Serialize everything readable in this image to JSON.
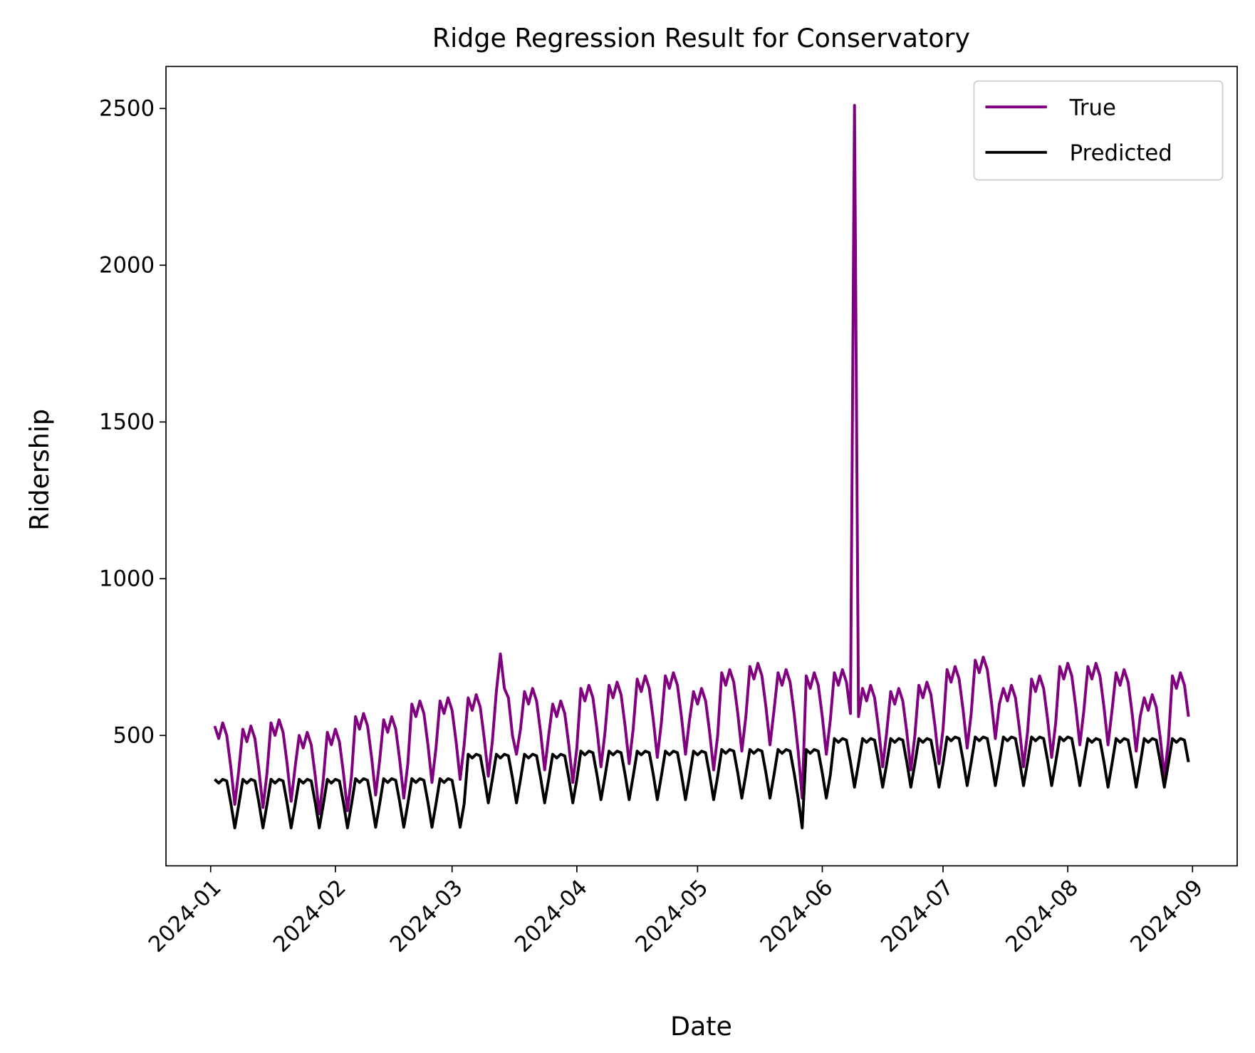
{
  "chart_data": {
    "type": "line",
    "title": "Ridge Regression Result for Conservatory",
    "xlabel": "Date",
    "ylabel": "Ridership",
    "x": [
      1,
      2,
      3,
      4,
      5,
      6,
      7,
      8,
      9,
      10,
      11,
      12,
      13,
      14,
      15,
      16,
      17,
      18,
      19,
      20,
      21,
      22,
      23,
      24,
      25,
      26,
      27,
      28,
      29,
      30,
      31,
      32,
      33,
      34,
      35,
      36,
      37,
      38,
      39,
      40,
      41,
      42,
      43,
      44,
      45,
      46,
      47,
      48,
      49,
      50,
      51,
      52,
      53,
      54,
      55,
      56,
      57,
      58,
      59,
      60,
      61,
      62,
      63,
      64,
      65,
      66,
      67,
      68,
      69,
      70,
      71,
      72,
      73,
      74,
      75,
      76,
      77,
      78,
      79,
      80,
      81,
      82,
      83,
      84,
      85,
      86,
      87,
      88,
      89,
      90,
      91,
      92,
      93,
      94,
      95,
      96,
      97,
      98,
      99,
      100,
      101,
      102,
      103,
      104,
      105,
      106,
      107,
      108,
      109,
      110,
      111,
      112,
      113,
      114,
      115,
      116,
      117,
      118,
      119,
      120,
      121,
      122,
      123,
      124,
      125,
      126,
      127,
      128,
      129,
      130,
      131,
      132,
      133,
      134,
      135,
      136,
      137,
      138,
      139,
      140,
      141,
      142,
      143,
      144,
      145,
      146,
      147,
      148,
      149,
      150,
      151,
      152,
      153,
      154,
      155,
      156,
      157,
      158,
      159,
      160,
      161,
      162,
      163,
      164,
      165,
      166,
      167,
      168,
      169,
      170,
      171,
      172,
      173,
      174,
      175,
      176,
      177,
      178,
      179,
      180,
      181,
      182,
      183,
      184,
      185,
      186,
      187,
      188,
      189,
      190,
      191,
      192,
      193,
      194,
      195,
      196,
      197,
      198,
      199,
      200,
      201,
      202,
      203,
      204,
      205,
      206,
      207,
      208,
      209,
      210,
      211,
      212,
      213,
      214,
      215,
      216,
      217,
      218,
      219,
      220,
      221,
      222,
      223,
      224,
      225,
      226,
      227,
      228,
      229,
      230,
      231,
      232,
      233,
      234,
      235,
      236,
      237,
      238,
      239,
      240,
      241,
      242,
      243
    ],
    "series": [
      {
        "name": "True",
        "color": "#800080",
        "values": [
          530,
          490,
          540,
          500,
          400,
          280,
          390,
          520,
          480,
          530,
          490,
          390,
          270,
          380,
          540,
          500,
          550,
          510,
          410,
          290,
          400,
          500,
          460,
          510,
          470,
          370,
          250,
          360,
          510,
          470,
          520,
          480,
          380,
          260,
          370,
          560,
          520,
          570,
          530,
          430,
          310,
          420,
          550,
          510,
          560,
          520,
          420,
          300,
          410,
          600,
          560,
          610,
          570,
          470,
          350,
          460,
          610,
          570,
          620,
          580,
          480,
          360,
          470,
          620,
          580,
          630,
          590,
          490,
          370,
          480,
          640,
          760,
          650,
          620,
          500,
          440,
          520,
          640,
          600,
          650,
          610,
          510,
          390,
          500,
          600,
          560,
          610,
          570,
          470,
          350,
          460,
          650,
          610,
          660,
          620,
          520,
          400,
          510,
          660,
          620,
          670,
          630,
          530,
          410,
          520,
          680,
          640,
          690,
          650,
          550,
          430,
          540,
          690,
          650,
          700,
          660,
          560,
          440,
          550,
          640,
          600,
          650,
          610,
          510,
          390,
          500,
          700,
          660,
          710,
          670,
          570,
          450,
          560,
          720,
          680,
          730,
          690,
          590,
          470,
          580,
          700,
          660,
          710,
          670,
          570,
          450,
          300,
          690,
          650,
          700,
          660,
          560,
          440,
          550,
          700,
          660,
          710,
          670,
          570,
          2510,
          560,
          650,
          610,
          660,
          620,
          520,
          400,
          510,
          640,
          600,
          650,
          610,
          510,
          390,
          500,
          660,
          620,
          670,
          630,
          530,
          410,
          520,
          710,
          670,
          720,
          680,
          580,
          460,
          570,
          740,
          700,
          750,
          710,
          610,
          490,
          600,
          650,
          610,
          660,
          620,
          520,
          400,
          510,
          680,
          640,
          690,
          650,
          550,
          430,
          540,
          720,
          680,
          730,
          690,
          590,
          470,
          580,
          720,
          680,
          730,
          690,
          590,
          470,
          580,
          700,
          660,
          710,
          670,
          570,
          450,
          560,
          620,
          580,
          630,
          590,
          490,
          370,
          480,
          690,
          650,
          700,
          660,
          560
        ]
      },
      {
        "name": "Predicted",
        "color": "#000000",
        "values": [
          360,
          348,
          360,
          355,
          285,
          205,
          280,
          360,
          348,
          360,
          355,
          285,
          205,
          280,
          360,
          348,
          360,
          355,
          285,
          205,
          280,
          360,
          348,
          360,
          355,
          285,
          205,
          280,
          360,
          348,
          360,
          355,
          285,
          205,
          280,
          362,
          350,
          362,
          357,
          287,
          207,
          282,
          362,
          350,
          362,
          357,
          287,
          207,
          282,
          362,
          350,
          362,
          357,
          287,
          207,
          282,
          362,
          350,
          362,
          357,
          287,
          207,
          282,
          440,
          428,
          440,
          435,
          365,
          285,
          360,
          440,
          428,
          440,
          435,
          365,
          285,
          360,
          440,
          428,
          440,
          435,
          365,
          285,
          360,
          440,
          428,
          440,
          435,
          365,
          285,
          360,
          450,
          438,
          450,
          445,
          375,
          295,
          370,
          450,
          438,
          450,
          445,
          375,
          295,
          370,
          450,
          438,
          450,
          445,
          375,
          295,
          370,
          450,
          438,
          450,
          445,
          375,
          295,
          370,
          450,
          438,
          450,
          445,
          375,
          295,
          370,
          455,
          443,
          455,
          450,
          380,
          300,
          375,
          455,
          443,
          455,
          450,
          380,
          300,
          375,
          455,
          443,
          455,
          450,
          380,
          300,
          205,
          455,
          443,
          455,
          450,
          380,
          300,
          375,
          490,
          478,
          490,
          485,
          415,
          335,
          410,
          490,
          478,
          490,
          485,
          415,
          335,
          410,
          490,
          478,
          490,
          485,
          415,
          335,
          410,
          490,
          478,
          490,
          485,
          415,
          335,
          410,
          495,
          483,
          495,
          490,
          420,
          340,
          415,
          495,
          483,
          495,
          490,
          420,
          340,
          415,
          495,
          483,
          495,
          490,
          420,
          340,
          415,
          495,
          483,
          495,
          490,
          420,
          340,
          415,
          495,
          483,
          495,
          490,
          420,
          340,
          415,
          490,
          478,
          490,
          485,
          415,
          335,
          410,
          490,
          478,
          490,
          485,
          415,
          335,
          410,
          490,
          478,
          490,
          485,
          415,
          335,
          410,
          490,
          478,
          490,
          485,
          415
        ]
      }
    ],
    "xlim": [
      -11.1,
      255.1
    ],
    "xticks": [
      {
        "value": 0,
        "label": "2024-01"
      },
      {
        "value": 31,
        "label": "2024-02"
      },
      {
        "value": 60,
        "label": "2024-03"
      },
      {
        "value": 91,
        "label": "2024-04"
      },
      {
        "value": 121,
        "label": "2024-05"
      },
      {
        "value": 152,
        "label": "2024-06"
      },
      {
        "value": 182,
        "label": "2024-07"
      },
      {
        "value": 213,
        "label": "2024-08"
      },
      {
        "value": 244,
        "label": "2024-09"
      }
    ],
    "ylim": [
      84,
      2634
    ],
    "yticks": [
      500,
      1000,
      1500,
      2000,
      2500
    ],
    "grid": false,
    "legend": "upper right"
  }
}
